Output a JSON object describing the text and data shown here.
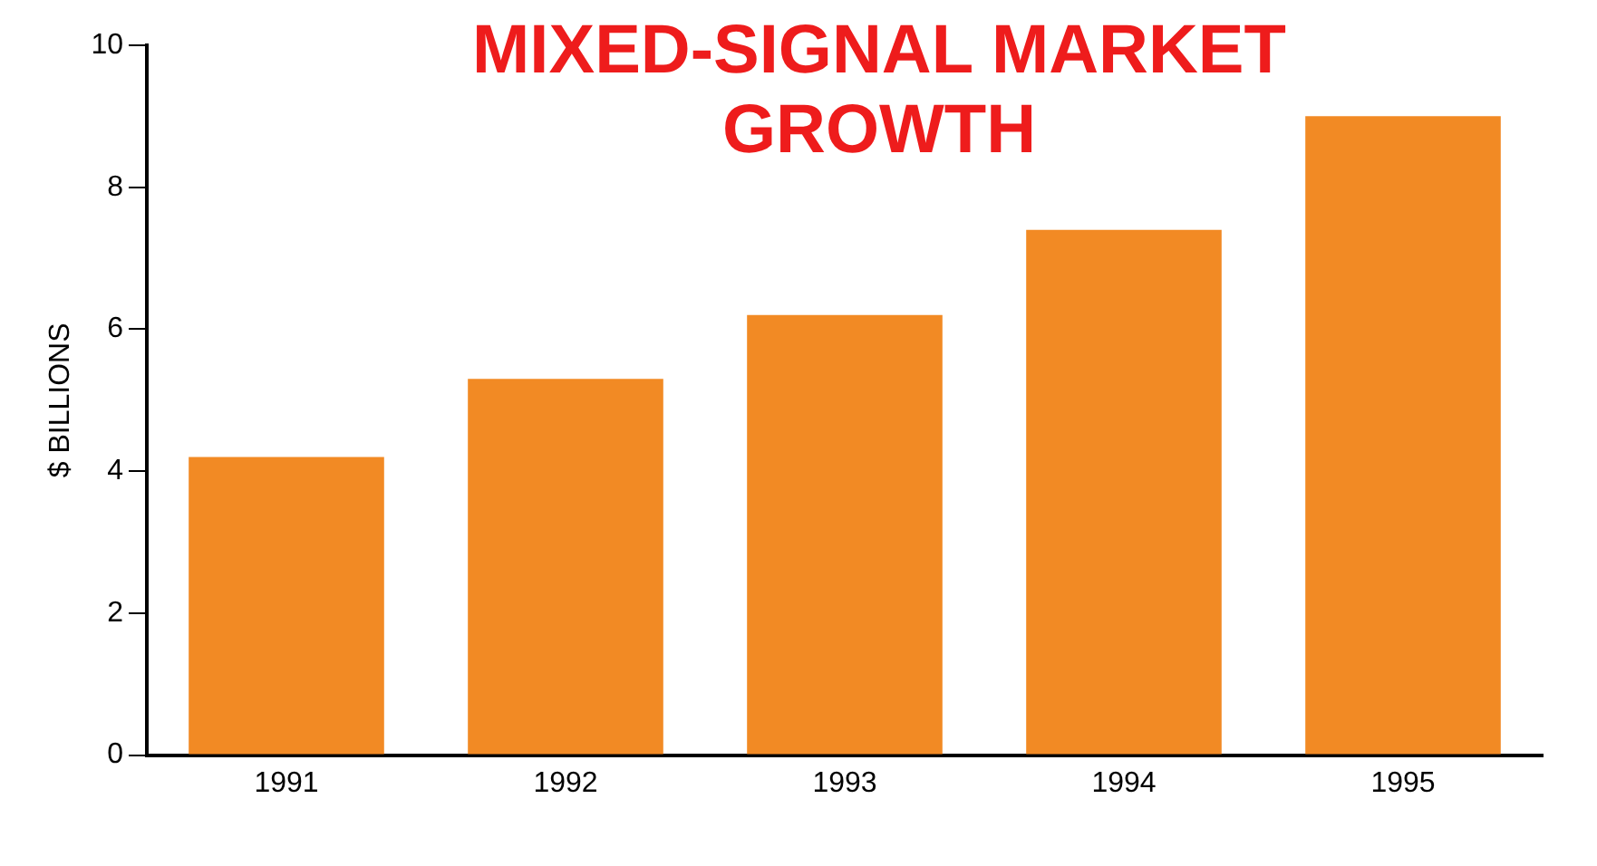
{
  "chart_data": {
    "type": "bar",
    "title": "MIXED-SIGNAL MARKET GROWTH",
    "ylabel": "$ BILLIONS",
    "categories": [
      "1991",
      "1992",
      "1993",
      "1994",
      "1995"
    ],
    "values": [
      4.2,
      5.3,
      6.2,
      7.4,
      9.0
    ],
    "color": "#f28a24",
    "ylim": [
      0,
      10
    ],
    "yticks": [
      0,
      2,
      4,
      6,
      8,
      10
    ],
    "grid": false,
    "legend": false
  }
}
